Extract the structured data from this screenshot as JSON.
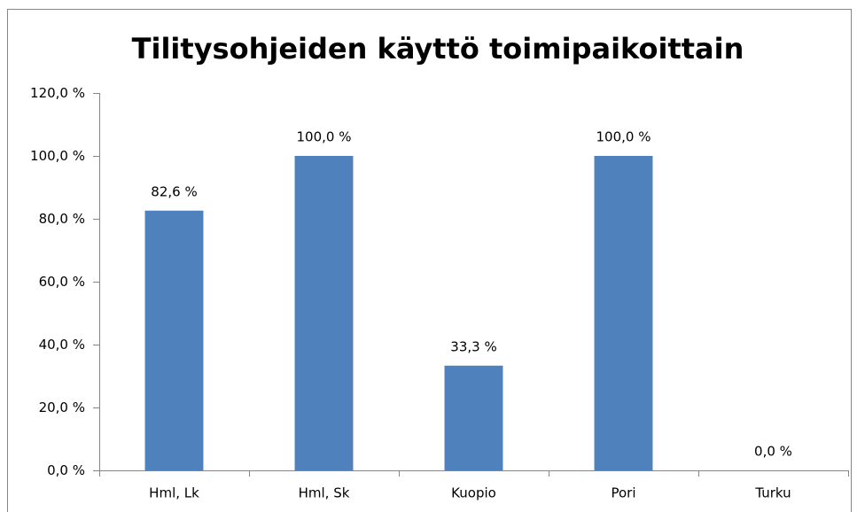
{
  "chart_data": {
    "type": "bar",
    "title": "Tilitysohjeiden käyttö toimipaikoittain",
    "categories": [
      "Hml, Lk",
      "Hml, Sk",
      "Kuopio",
      "Pori",
      "Turku"
    ],
    "values": [
      82.6,
      100,
      33.3,
      100,
      0
    ],
    "value_labels": [
      "82,6 %",
      "100,0 %",
      "33,3 %",
      "100,0 %",
      "0,0 %"
    ],
    "color": "#4f81bd",
    "ylim": [
      0,
      120
    ],
    "yticks": [
      {
        "value": 0,
        "label": "0,0 %"
      },
      {
        "value": 20,
        "label": "20,0 %"
      },
      {
        "value": 40,
        "label": "40,0 %"
      },
      {
        "value": 60,
        "label": "60,0 %"
      },
      {
        "value": 80,
        "label": "80,0 %"
      },
      {
        "value": 100,
        "label": "100,0 %"
      },
      {
        "value": 120,
        "label": "120,0 %"
      }
    ],
    "grid": false
  }
}
